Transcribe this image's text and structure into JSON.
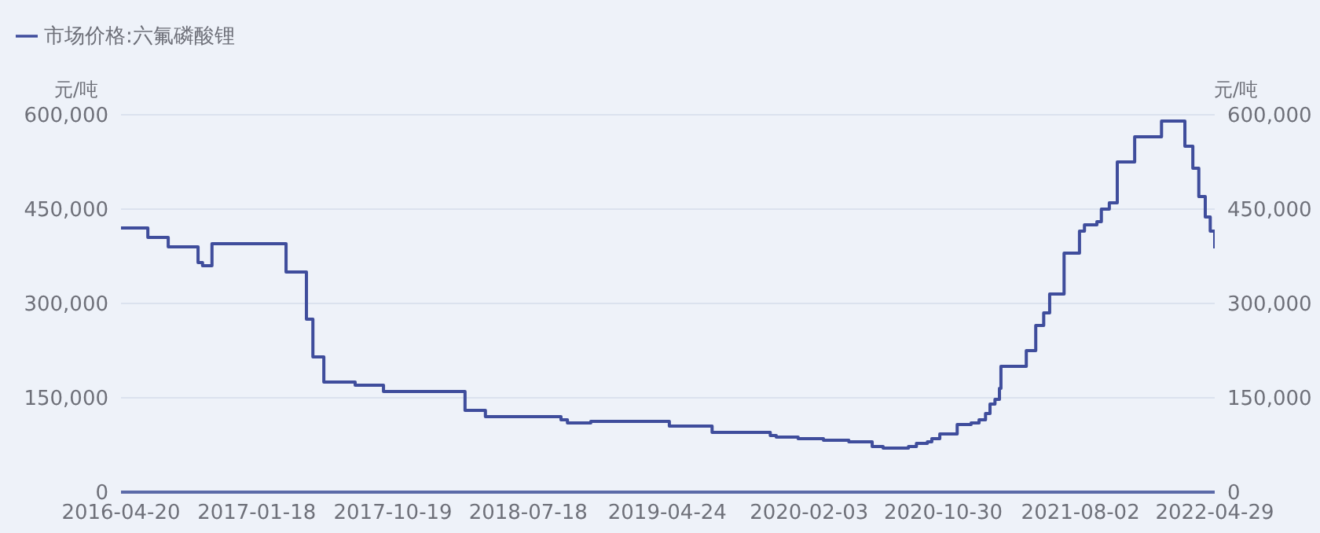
{
  "chart_data": {
    "type": "step",
    "ylabel": "元/吨",
    "y2label": "元/吨",
    "legend": "top left",
    "grid": "y",
    "marker": "none",
    "x": [
      "2016-04-20",
      "2016-06-13",
      "2016-07-24",
      "2016-09-22",
      "2016-10-01",
      "2016-10-20",
      "2017-03-18",
      "2017-04-28",
      "2017-05-11",
      "2017-06-02",
      "2017-08-04",
      "2017-09-30",
      "2018-03-13",
      "2018-04-23",
      "2018-09-22",
      "2018-10-05",
      "2018-11-21",
      "2019-04-28",
      "2019-07-23",
      "2019-11-17",
      "2019-11-29",
      "2020-01-12",
      "2020-03-03",
      "2020-04-23",
      "2020-06-09",
      "2020-07-01",
      "2020-08-21",
      "2020-09-06",
      "2020-09-28",
      "2020-10-07",
      "2020-10-23",
      "2020-11-27",
      "2020-12-25",
      "2021-01-10",
      "2021-01-23",
      "2021-02-01",
      "2021-02-11",
      "2021-02-20",
      "2021-02-23",
      "2021-04-15",
      "2021-05-04",
      "2021-05-20",
      "2021-06-01",
      "2021-06-30",
      "2021-07-31",
      "2021-08-10",
      "2021-09-04",
      "2021-09-13",
      "2021-09-29",
      "2021-10-15",
      "2021-11-19",
      "2022-01-12",
      "2022-02-28",
      "2022-03-16",
      "2022-03-28",
      "2022-04-10",
      "2022-04-20",
      "2022-04-29"
    ],
    "series": [
      {
        "name": "市场价格:六氟磷酸锂",
        "color": "#3f4d9c",
        "values": [
          420000,
          405000,
          390000,
          365000,
          360000,
          395000,
          350000,
          275000,
          215000,
          175000,
          170000,
          160000,
          130000,
          120000,
          115000,
          110000,
          112500,
          105000,
          95000,
          90000,
          87500,
          85000,
          82500,
          80000,
          72500,
          70000,
          72500,
          77500,
          80000,
          85000,
          92500,
          107500,
          110000,
          115000,
          125000,
          140000,
          147500,
          165000,
          200000,
          225000,
          265000,
          285000,
          315000,
          380000,
          415000,
          425000,
          430000,
          450000,
          460000,
          525000,
          565000,
          590000,
          550000,
          515000,
          470000,
          437500,
          415000,
          387500
        ]
      }
    ],
    "xlim": [
      "2016-04-20",
      "2022-04-29"
    ],
    "xticks": [
      "2016-04-20",
      "2017-01-18",
      "2017-10-19",
      "2018-07-18",
      "2019-04-24",
      "2020-02-03",
      "2020-10-30",
      "2021-08-02",
      "2022-04-29"
    ],
    "ylim": [
      0,
      600000
    ],
    "yticks": [
      0,
      {
        "value": 150000,
        "label": "150,000"
      },
      {
        "value": 300000,
        "label": "300,000"
      },
      {
        "value": 450000,
        "label": "450,000"
      },
      {
        "value": 600000,
        "label": "600,000"
      }
    ],
    "y2lim": [
      0,
      600000
    ],
    "y2ticks": [
      0,
      {
        "value": 150000,
        "label": "150,000"
      },
      {
        "value": 300000,
        "label": "300,000"
      },
      {
        "value": 450000,
        "label": "450,000"
      },
      {
        "value": 600000,
        "label": "600,000"
      }
    ]
  }
}
